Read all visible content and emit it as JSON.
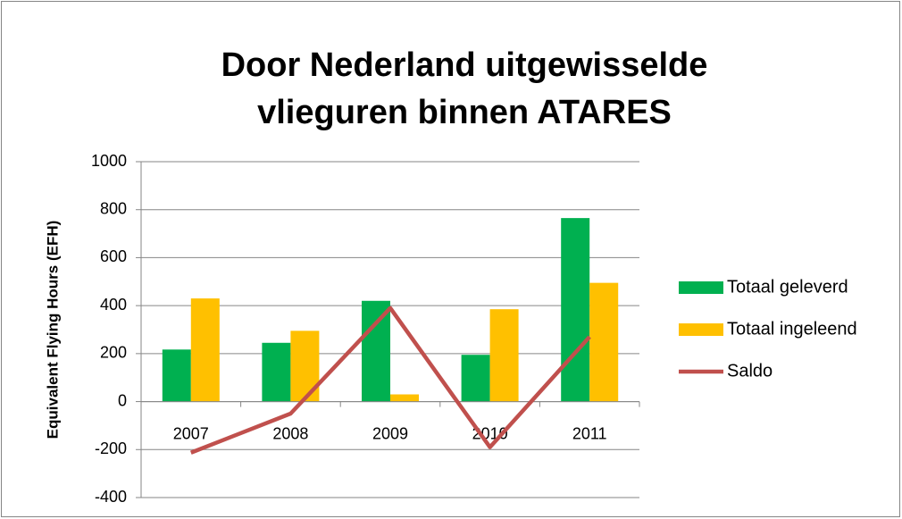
{
  "chart_data": {
    "type": "bar-line",
    "title": [
      "Door Nederland uitgewisselde",
      "vlieguren binnen ATARES"
    ],
    "y_label": "Equivalent Flying Hours (EFH)",
    "categories": [
      "2007",
      "2008",
      "2009",
      "2010",
      "2011"
    ],
    "series": [
      {
        "name": "Totaal geleverd",
        "type": "bar",
        "color": "#00b050",
        "values": [
          217,
          245,
          420,
          195,
          765
        ]
      },
      {
        "name": "Totaal ingeleend",
        "type": "bar",
        "color": "#ffc000",
        "values": [
          430,
          295,
          30,
          385,
          495
        ]
      },
      {
        "name": "Saldo",
        "type": "line",
        "color": "#c0504d",
        "values": [
          -213,
          -50,
          390,
          -190,
          270
        ]
      }
    ],
    "ylim": [
      -400,
      1000
    ],
    "yticks": [
      -400,
      -200,
      0,
      200,
      400,
      600,
      800,
      1000
    ],
    "grid": true,
    "legend": "right"
  }
}
